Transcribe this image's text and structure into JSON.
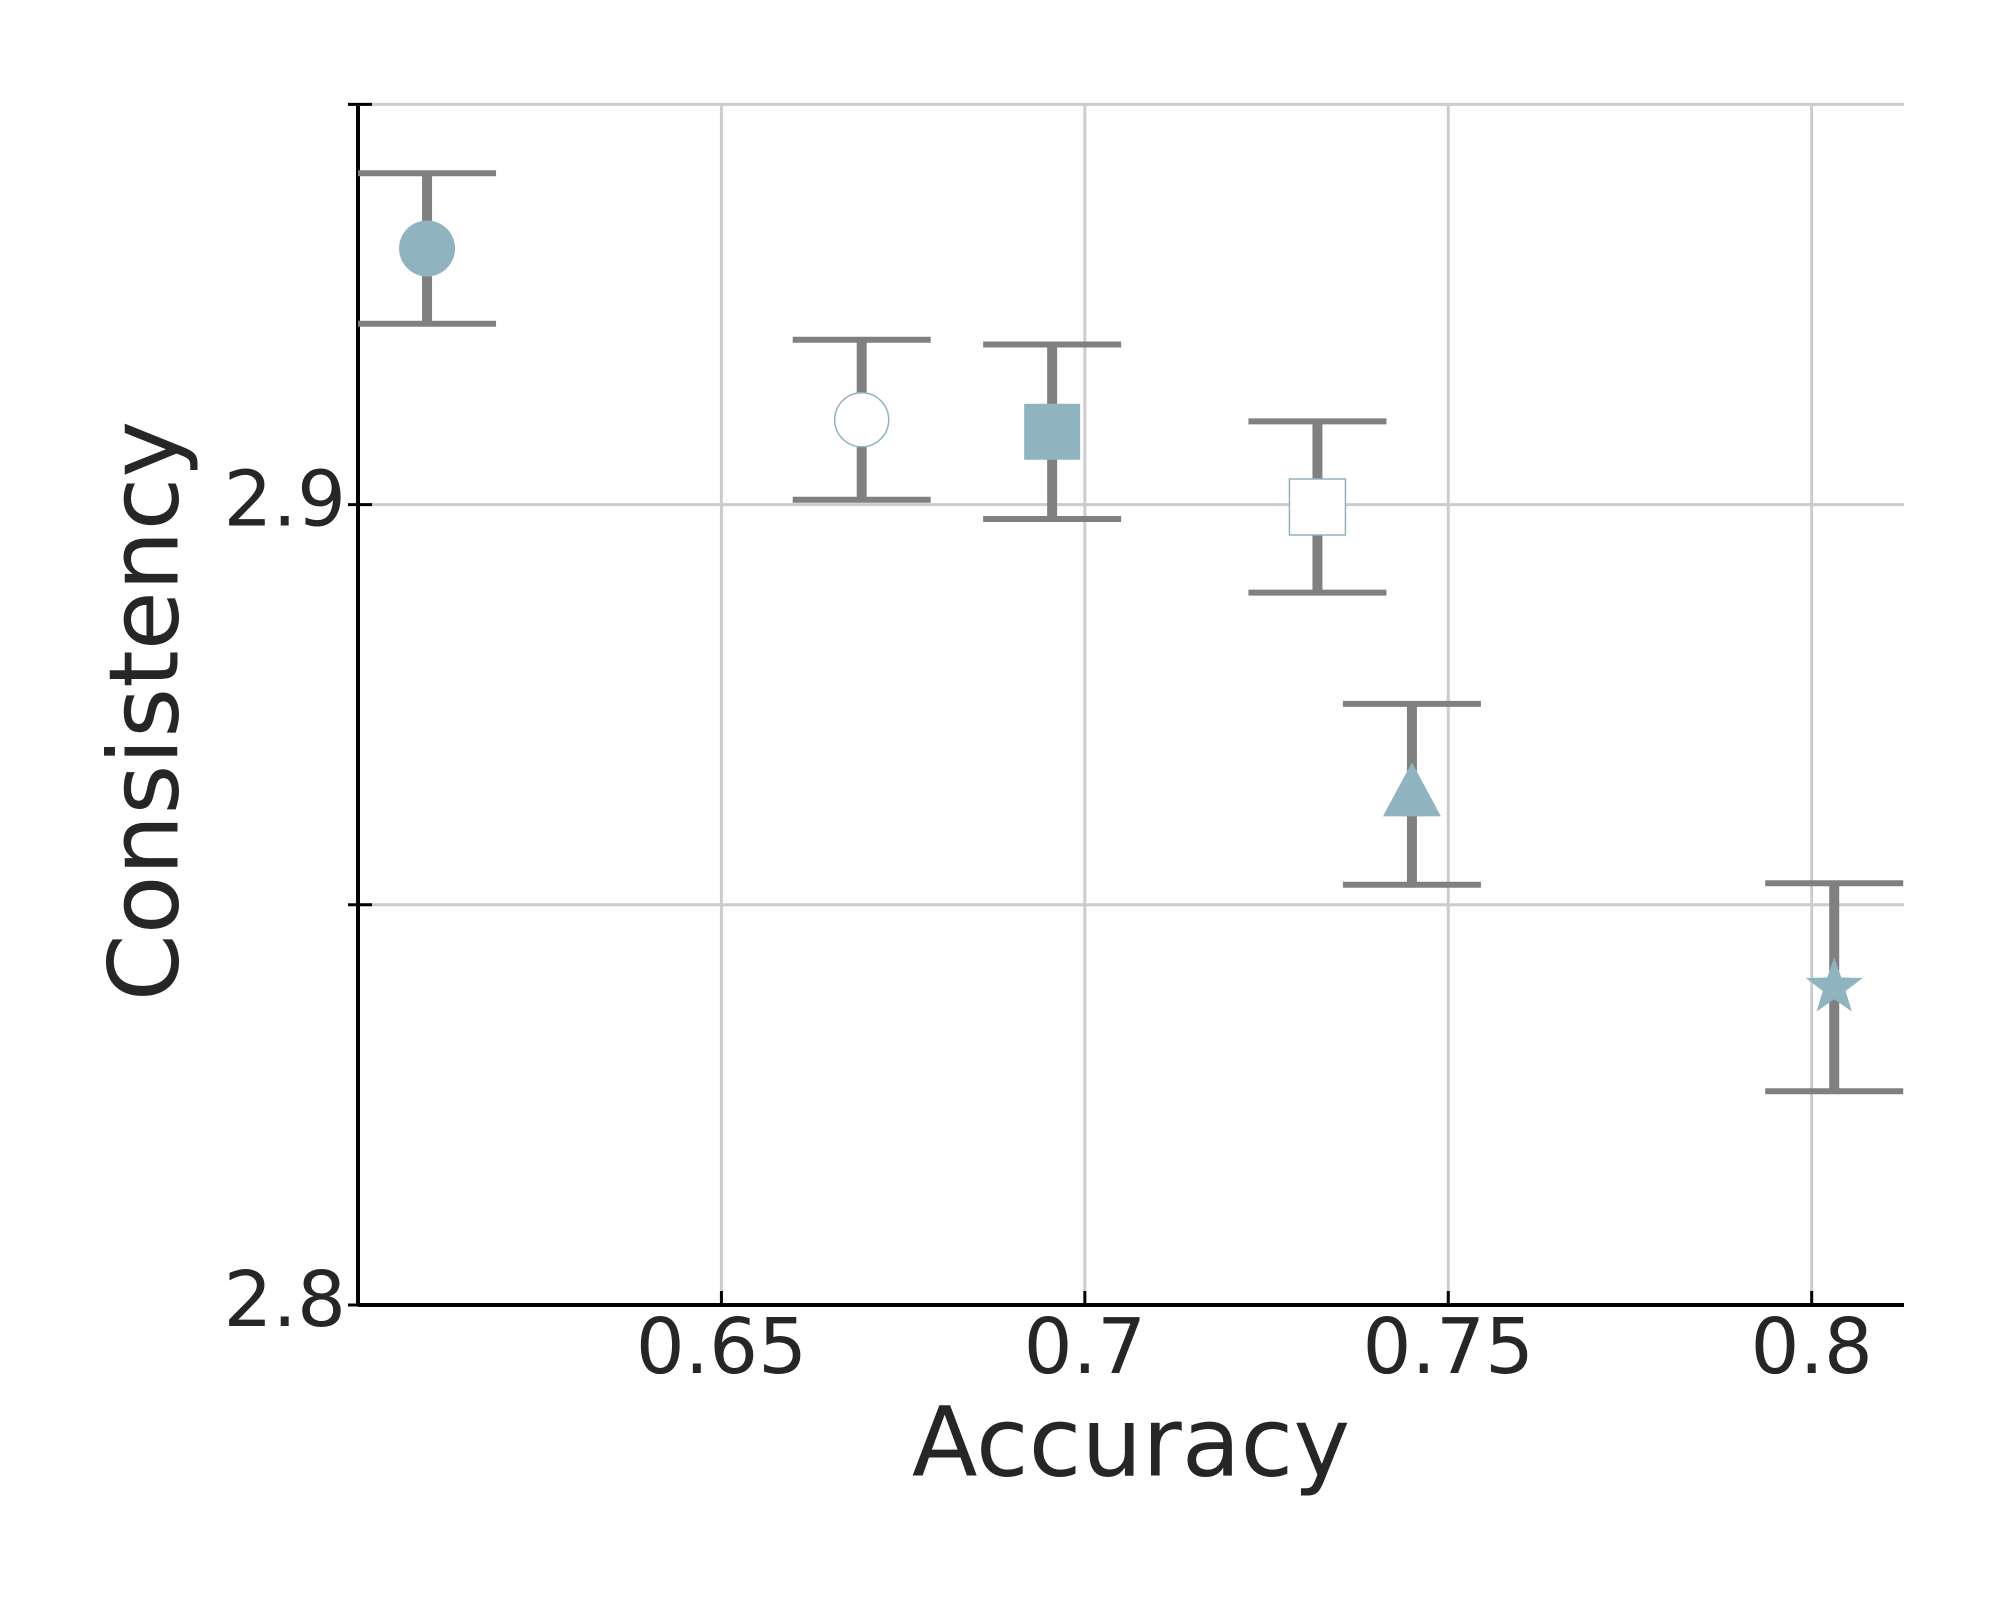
{
  "chart_data": {
    "type": "scatter",
    "xlabel": "Accuracy",
    "ylabel": "Consistency",
    "xlim": [
      0.6,
      0.8127
    ],
    "ylim": [
      2.8,
      2.9498
    ],
    "xticks": [
      {
        "value": 0.65,
        "label": "0.65"
      },
      {
        "value": 0.7,
        "label": "0.7"
      },
      {
        "value": 0.75,
        "label": "0.75"
      },
      {
        "value": 0.8,
        "label": "0.8"
      }
    ],
    "yticks": [
      {
        "value": 2.8,
        "label": "2.8"
      },
      {
        "value": 2.9,
        "label": "2.9"
      }
    ],
    "yticks_minor": [
      2.85,
      2.95
    ],
    "grid": true,
    "series": [
      {
        "x": [
          0.6095,
          0.6693,
          0.6955,
          0.732,
          0.745,
          0.8031
        ],
        "y": [
          2.932,
          2.9106,
          2.9091,
          2.8997,
          2.8638,
          2.8397
        ],
        "errors": [
          0.0094,
          0.01,
          0.0109,
          0.0107,
          0.0113,
          0.013
        ],
        "markers": [
          "circle",
          "circle-open",
          "square",
          "square-open",
          "triangle",
          "star"
        ],
        "color": "#8fb3bf",
        "error_color": "#808080"
      }
    ]
  }
}
